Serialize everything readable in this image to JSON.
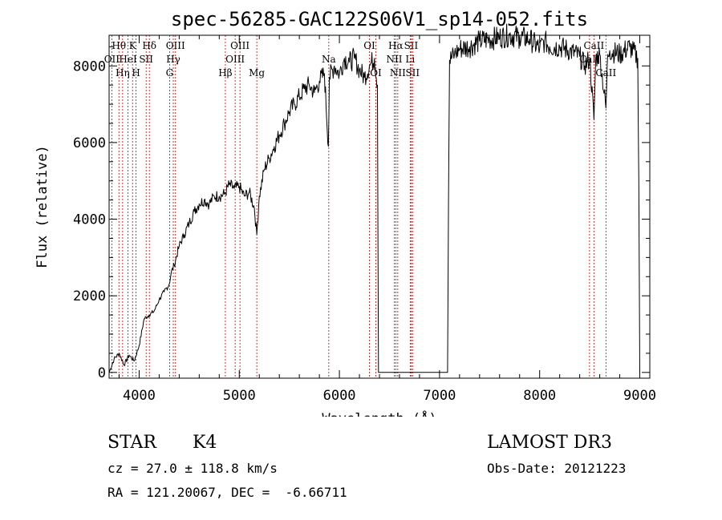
{
  "chart_data": {
    "type": "line",
    "title": "spec-56285-GAC122S06V1_sp14-052.fits",
    "xlabel": "Wavelength (Å)",
    "ylabel": "Flux (relative)",
    "xlim": [
      3700,
      9100
    ],
    "ylim": [
      -150,
      8800
    ],
    "xticks": [
      4000,
      5000,
      6000,
      7000,
      8000,
      9000
    ],
    "yticks": [
      0,
      2000,
      4000,
      6000,
      8000
    ],
    "series": [
      {
        "name": "flux",
        "x": [
          3700,
          3750,
          3800,
          3850,
          3900,
          3950,
          4000,
          4050,
          4100,
          4150,
          4200,
          4250,
          4300,
          4320,
          4350,
          4400,
          4450,
          4500,
          4550,
          4600,
          4650,
          4700,
          4750,
          4800,
          4850,
          4900,
          4950,
          5000,
          5050,
          5100,
          5150,
          5175,
          5200,
          5250,
          5300,
          5350,
          5400,
          5450,
          5500,
          5550,
          5600,
          5650,
          5700,
          5750,
          5800,
          5850,
          5890,
          5900,
          5950,
          6000,
          6050,
          6100,
          6150,
          6200,
          6250,
          6300,
          6350,
          6380,
          6390,
          6400,
          6500,
          6600,
          6700,
          6800,
          6900,
          7000,
          7080,
          7090,
          7100,
          7150,
          7200,
          7300,
          7400,
          7500,
          7600,
          7700,
          7800,
          7900,
          8000,
          8050,
          8100,
          8200,
          8300,
          8400,
          8450,
          8500,
          8542,
          8560,
          8600,
          8662,
          8680,
          8700,
          8800,
          8900,
          8980,
          8990,
          9000
        ],
        "y": [
          0,
          350,
          500,
          200,
          450,
          300,
          700,
          1400,
          1500,
          1600,
          1900,
          2100,
          2300,
          2600,
          2800,
          3300,
          3600,
          3900,
          4200,
          4400,
          4500,
          4400,
          4600,
          4600,
          4650,
          4900,
          4800,
          4850,
          4600,
          4700,
          4300,
          3600,
          4600,
          5300,
          5600,
          5900,
          6200,
          6500,
          6800,
          7000,
          7200,
          7400,
          7500,
          7300,
          7600,
          7800,
          5900,
          7700,
          8000,
          7800,
          8200,
          8100,
          8200,
          7900,
          7700,
          8000,
          8200,
          7500,
          0,
          0,
          0,
          0,
          0,
          0,
          0,
          0,
          0,
          4500,
          8150,
          8300,
          8450,
          8500,
          8650,
          8700,
          8750,
          8800,
          8750,
          8700,
          8450,
          8650,
          8500,
          8500,
          8400,
          8250,
          8000,
          8200,
          6600,
          8200,
          8300,
          6900,
          8300,
          8400,
          8300,
          8500,
          8200,
          5000,
          0
        ]
      }
    ],
    "spectral_lines": [
      {
        "label": "Hθ",
        "wl": 3798,
        "row": 0
      },
      {
        "label": "OII",
        "wl": 3727,
        "row": 1
      },
      {
        "label": "Hη",
        "wl": 3835,
        "row": 2
      },
      {
        "label": "HeI",
        "wl": 3889,
        "row": 1
      },
      {
        "label": "K",
        "wl": 3934,
        "row": 0
      },
      {
        "label": "H",
        "wl": 3969,
        "row": 2
      },
      {
        "label": "SII",
        "wl": 4070,
        "row": 1
      },
      {
        "label": "Hδ",
        "wl": 4102,
        "row": 0
      },
      {
        "label": "G",
        "wl": 4304,
        "row": 2
      },
      {
        "label": "Hγ",
        "wl": 4341,
        "row": 1
      },
      {
        "label": "OIII",
        "wl": 4363,
        "row": 0
      },
      {
        "label": "Hβ",
        "wl": 4861,
        "row": 2
      },
      {
        "label": "OIII",
        "wl": 4959,
        "row": 1
      },
      {
        "label": "OIII",
        "wl": 5007,
        "row": 0
      },
      {
        "label": "Mg",
        "wl": 5175,
        "row": 2
      },
      {
        "label": "Na",
        "wl": 5894,
        "row": 1
      },
      {
        "label": "OI",
        "wl": 6300,
        "row": 0
      },
      {
        "label": "OI",
        "wl": 6364,
        "row": 2
      },
      {
        "label": "NII",
        "wl": 6548,
        "row": 1
      },
      {
        "label": "Hα",
        "wl": 6563,
        "row": 0
      },
      {
        "label": "NII",
        "wl": 6583,
        "row": 2
      },
      {
        "label": "Li",
        "wl": 6707,
        "row": 1
      },
      {
        "label": "SII",
        "wl": 6716,
        "row": 0
      },
      {
        "label": "SII",
        "wl": 6731,
        "row": 2
      },
      {
        "label": "CaII",
        "wl": 8498,
        "row": 1
      },
      {
        "label": "CaII",
        "wl": 8542,
        "row": 0
      },
      {
        "label": "CaII",
        "wl": 8662,
        "row": 2
      }
    ]
  },
  "info": {
    "class": "STAR",
    "subclass": "K4",
    "survey": "LAMOST DR3",
    "cz": "cz = 27.0 ± 118.8 km/s",
    "obs_date": "Obs-Date: 20121223",
    "coords": "RA = 121.20067, DEC =  -6.66711"
  },
  "colors": {
    "line": "#000000",
    "marker": "#cc0000",
    "axis": "#000000"
  }
}
